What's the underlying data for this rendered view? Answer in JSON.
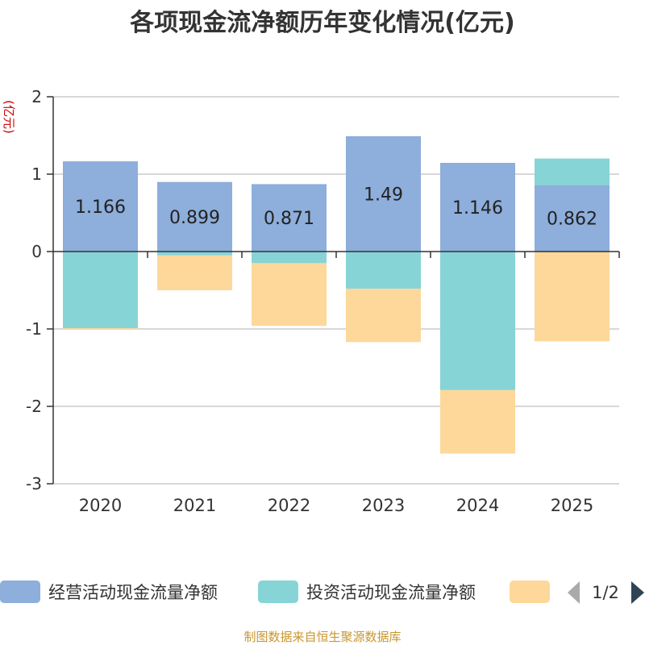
{
  "chart_data": {
    "type": "bar",
    "stacked": true,
    "title": "各项现金流净额历年变化情况(亿元)",
    "ylabel": "(亿元)",
    "xlabel": "",
    "ylim": [
      -3,
      2
    ],
    "yticks": [
      2,
      1,
      0,
      -1,
      -2,
      -3
    ],
    "grid": true,
    "categories": [
      "2020",
      "2021",
      "2022",
      "2023",
      "2024",
      "2025"
    ],
    "series": [
      {
        "name": "经营活动现金流量净额",
        "color": "#8eaedb",
        "values": [
          1.166,
          0.899,
          0.871,
          1.49,
          1.146,
          0.862
        ]
      },
      {
        "name": "投资活动现金流量净额",
        "color": "#86d4d6",
        "values": [
          -0.99,
          -0.05,
          -0.15,
          -0.48,
          -1.79,
          0.34
        ]
      },
      {
        "name": "",
        "color": "#fdd89a",
        "values": [
          -0.01,
          -0.45,
          -0.81,
          -0.69,
          -0.82,
          -1.16
        ]
      }
    ],
    "data_labels": [
      "1.166",
      "0.899",
      "0.871",
      "1.49",
      "1.146",
      "0.862"
    ],
    "legend_position": "bottom"
  },
  "legend": {
    "page_indicator": "1/2"
  },
  "source_note": "制图数据来自恒生聚源数据库"
}
